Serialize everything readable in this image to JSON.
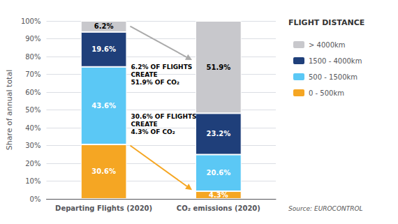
{
  "chart_data": {
    "type": "bar",
    "stacked": true,
    "data_labels": true,
    "grid": true,
    "legend": "right",
    "legend_title": "FLIGHT DISTANCE",
    "categories": [
      "Departing Flights (2020)",
      "CO₂ emissions (2020)"
    ],
    "ylabel": "Share of annual total",
    "ylim": [
      0,
      100
    ],
    "yticks": [
      {
        "value": 0,
        "label": "0%"
      },
      {
        "value": 10,
        "label": "10%"
      },
      {
        "value": 20,
        "label": "20%"
      },
      {
        "value": 30,
        "label": "30%"
      },
      {
        "value": 40,
        "label": "40%"
      },
      {
        "value": 50,
        "label": "50%"
      },
      {
        "value": 60,
        "label": "60%"
      },
      {
        "value": 70,
        "label": "70%"
      },
      {
        "value": 80,
        "label": "80%"
      },
      {
        "value": 90,
        "label": "90%"
      },
      {
        "value": 100,
        "label": "100%"
      }
    ],
    "series": [
      {
        "name": "0 - 500km",
        "color": "#F5A623",
        "values": [
          30.6,
          4.3
        ],
        "value_labels": [
          "30.6%",
          "4.3%"
        ]
      },
      {
        "name": "500 - 1500km",
        "color": "#5BC8F5",
        "values": [
          43.6,
          20.6
        ],
        "value_labels": [
          "43.6%",
          "20.6%"
        ]
      },
      {
        "name": "1500 - 4000km",
        "color": "#1F3F7A",
        "values": [
          19.6,
          23.2
        ],
        "value_labels": [
          "19.6%",
          "23.2%"
        ]
      },
      {
        "name": "> 4000km",
        "color": "#C8C8CC",
        "values": [
          6.2,
          51.9
        ],
        "value_labels": [
          "6.2%",
          "51.9%"
        ]
      }
    ],
    "annotations": [
      {
        "text": "6.2% OF FLIGHTS\nCREATE\n51.9% OF CO₂",
        "color": "#AAAAAA"
      },
      {
        "text": "30.6% OF FLIGHTS\nCREATE\n4.3% OF CO₂",
        "color": "#F5A623"
      }
    ],
    "source": "Source: EUROCONTROL"
  }
}
